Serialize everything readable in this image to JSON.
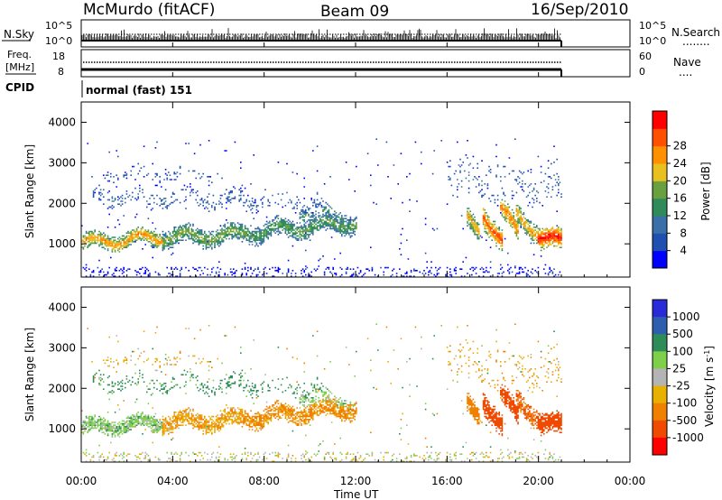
{
  "header": {
    "station": "McMurdo (fitACF)",
    "beam": "Beam 09",
    "date": "16/Sep/2010"
  },
  "panels": {
    "nsky": {
      "label": "N.Sky",
      "ticks_left": [
        "10^5",
        "10^0"
      ],
      "ticks_right": [
        "10^5",
        "10^0"
      ],
      "right_label": "N.Search",
      "right_dots": "........"
    },
    "freq": {
      "label_line1": "Freq.",
      "label_line2": "[MHz]",
      "ticks_left": [
        "18",
        "8"
      ],
      "ticks_right": [
        "60",
        "0"
      ],
      "right_label": "Nave",
      "right_dots": "...."
    },
    "cpid": {
      "label": "CPID",
      "value": "normal (fast) 151"
    }
  },
  "colors": {
    "power_scale": [
      "#0000ff",
      "#1f4fb0",
      "#3a6fa8",
      "#2f8b5a",
      "#6aa040",
      "#e8c020",
      "#ff9000",
      "#ff5000",
      "#ff0000"
    ],
    "velocity_scale": [
      "#2a2ad8",
      "#2d5fae",
      "#2e8c58",
      "#7ed04a",
      "#b4b4b4",
      "#e8b000",
      "#f08000",
      "#f04a00",
      "#ff0000"
    ]
  },
  "chart_data": [
    {
      "type": "heatmap",
      "name": "power",
      "xlabel": "Time UT",
      "ylabel": "Slant Range [km]",
      "xlim": [
        0,
        24
      ],
      "ylim": [
        180,
        4500
      ],
      "xticks": [
        "00:00",
        "04:00",
        "08:00",
        "12:00",
        "16:00",
        "20:00",
        "00:00"
      ],
      "yticks": [
        1000,
        2000,
        3000,
        4000
      ],
      "colorbar": {
        "label": "Power [dB]",
        "ticks": [
          "4",
          "8",
          "12",
          "16",
          "20",
          "24",
          "28"
        ],
        "range": [
          0,
          30
        ]
      },
      "data_end_hour": 21
    },
    {
      "type": "heatmap",
      "name": "velocity",
      "xlabel": "Time UT",
      "ylabel": "Slant Range [km]",
      "xlim": [
        0,
        24
      ],
      "ylim": [
        180,
        4500
      ],
      "xticks": [
        "00:00",
        "04:00",
        "08:00",
        "12:00",
        "16:00",
        "20:00",
        "00:00"
      ],
      "yticks": [
        1000,
        2000,
        3000,
        4000
      ],
      "colorbar": {
        "label": "Velocity [m s",
        "label_sup": "-1",
        "label_end": "]",
        "ticks": [
          "1000",
          "500",
          "100",
          "25",
          "-25",
          "-100",
          "-500",
          "-1000"
        ]
      },
      "data_end_hour": 21
    }
  ]
}
